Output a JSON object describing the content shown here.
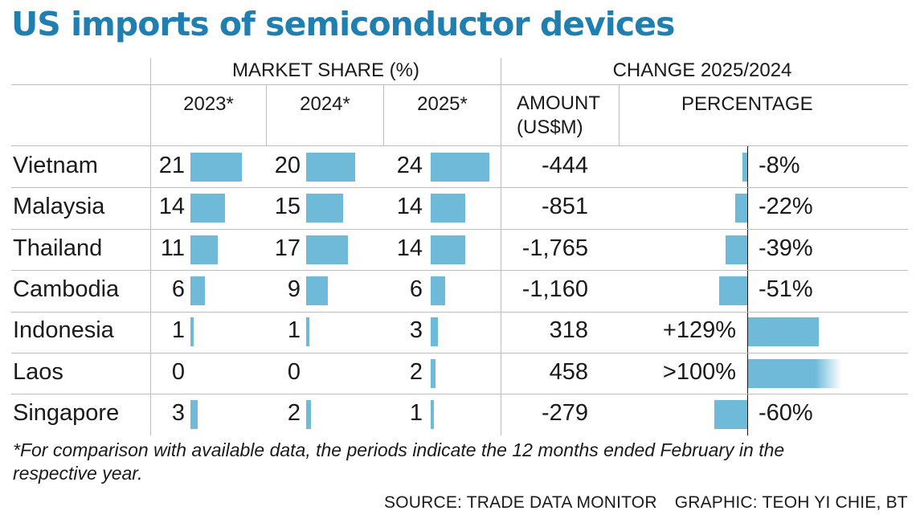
{
  "title": "US imports of semiconductor devices",
  "headers": {
    "market_share": "MARKET SHARE (%)",
    "change": "CHANGE 2025/2024",
    "y2023": "2023*",
    "y2024": "2024*",
    "y2025": "2025*",
    "amount_line1": "AMOUNT",
    "amount_line2": "(US$M)",
    "percentage": "PERCENTAGE"
  },
  "colors": {
    "title": "#1f7fb1",
    "bar": "#6fbad9"
  },
  "chart_data": {
    "type": "table",
    "rows": [
      {
        "country": "Vietnam",
        "share_2023": 21,
        "share_2024": 20,
        "share_2025": 24,
        "amount": "-444",
        "amount_value": -444,
        "pct_label": "-8%",
        "pct_value": -8
      },
      {
        "country": "Malaysia",
        "share_2023": 14,
        "share_2024": 15,
        "share_2025": 14,
        "amount": "-851",
        "amount_value": -851,
        "pct_label": "-22%",
        "pct_value": -22
      },
      {
        "country": "Thailand",
        "share_2023": 11,
        "share_2024": 17,
        "share_2025": 14,
        "amount": "-1,765",
        "amount_value": -1765,
        "pct_label": "-39%",
        "pct_value": -39
      },
      {
        "country": "Cambodia",
        "share_2023": 6,
        "share_2024": 9,
        "share_2025": 6,
        "amount": "-1,160",
        "amount_value": -1160,
        "pct_label": "-51%",
        "pct_value": -51
      },
      {
        "country": "Indonesia",
        "share_2023": 1,
        "share_2024": 1,
        "share_2025": 3,
        "amount": "318",
        "amount_value": 318,
        "pct_label": "+129%",
        "pct_value": 129
      },
      {
        "country": "Laos",
        "share_2023": 0,
        "share_2024": 0,
        "share_2025": 2,
        "amount": "458",
        "amount_value": 458,
        "pct_label": ">100%",
        "pct_value": 170,
        "pct_open_ended": true
      },
      {
        "country": "Singapore",
        "share_2023": 3,
        "share_2024": 2,
        "share_2025": 1,
        "amount": "-279",
        "amount_value": -279,
        "pct_label": "-60%",
        "pct_value": -60
      }
    ]
  },
  "footnote": "*For comparison with available data, the periods indicate the 12 months ended February in the respective year.",
  "source": "SOURCE: TRADE DATA MONITOR",
  "graphic_credit": "GRAPHIC: TEOH YI CHIE, BT"
}
